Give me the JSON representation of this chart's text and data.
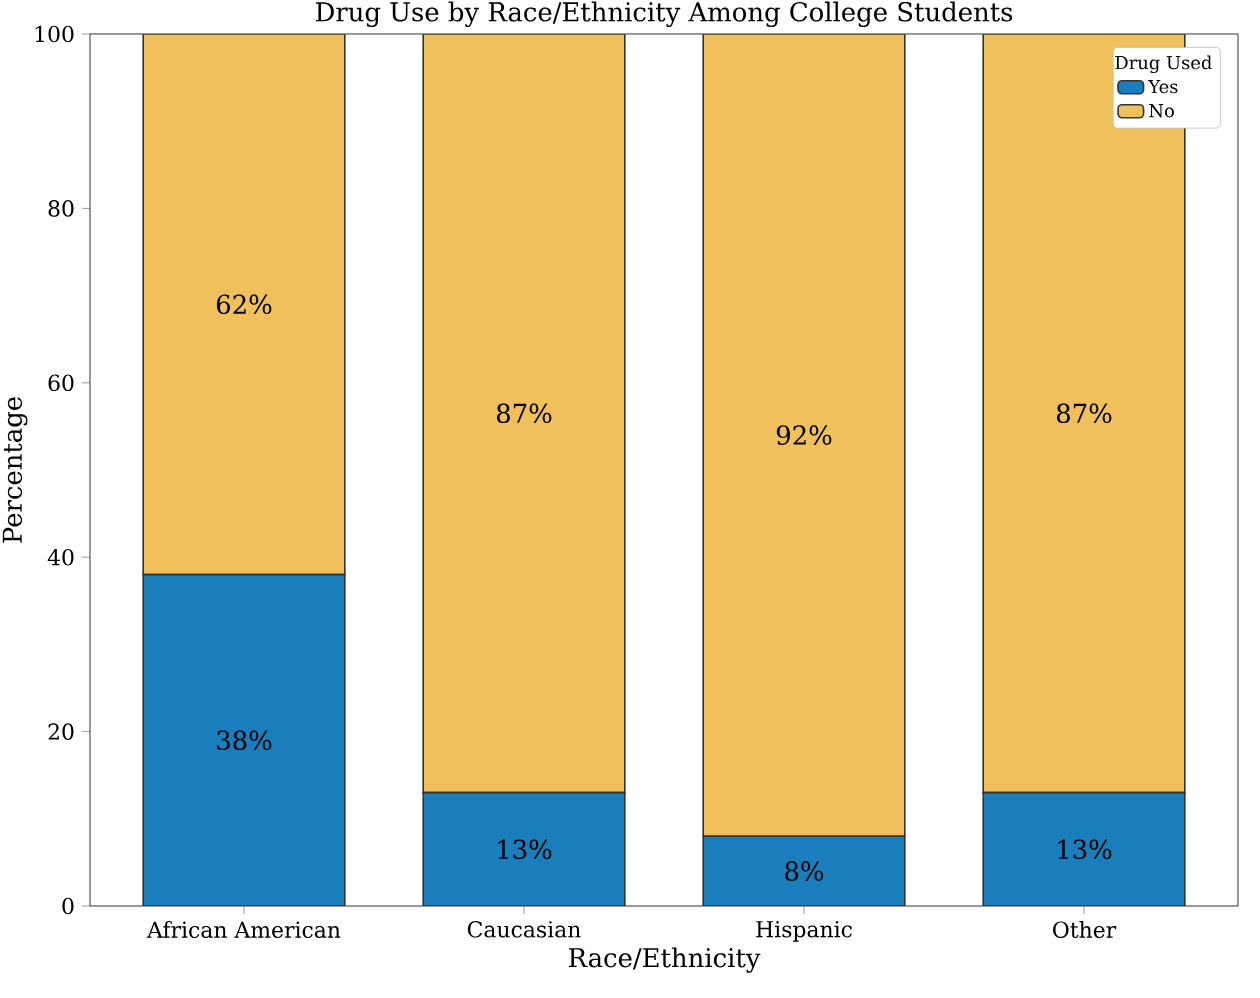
{
  "chart_data": {
    "type": "bar",
    "title": "Drug Use by Race/Ethnicity Among College Students",
    "xlabel": "Race/Ethnicity",
    "ylabel": "Percentage",
    "legend_title": "Drug Used",
    "categories": [
      "African American",
      "Caucasian",
      "Hispanic",
      "Other"
    ],
    "stacked": true,
    "legend": "top right",
    "ylim": [
      0,
      100
    ],
    "yticks": [
      0,
      20,
      40,
      60,
      80,
      100
    ],
    "series": [
      {
        "name": "Yes",
        "color": "#1a7ebd",
        "values": [
          38,
          13,
          8,
          13
        ],
        "value_labels": [
          "38%",
          "13%",
          "8%",
          "13%"
        ]
      },
      {
        "name": "No",
        "color": "#f0c05c",
        "values": [
          62,
          87,
          92,
          87
        ],
        "value_labels": [
          "62%",
          "87%",
          "92%",
          "87%"
        ]
      }
    ]
  }
}
